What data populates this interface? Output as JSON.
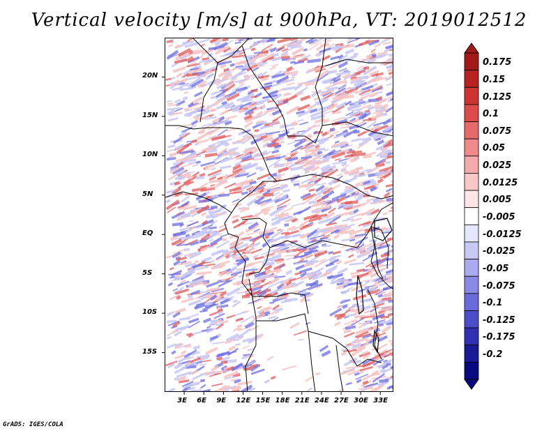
{
  "title": "Vertical velocity [m/s] at 900hPa, VT: 2019012512",
  "credit": "GrADS: IGES/COLA",
  "map": {
    "lon_range": [
      0,
      35
    ],
    "lat_range": [
      -20,
      25
    ],
    "lon_ticks": [
      "3E",
      "6E",
      "9E",
      "12E",
      "15E",
      "18E",
      "21E",
      "24E",
      "27E",
      "30E",
      "33E"
    ],
    "lat_ticks": [
      "20N",
      "15N",
      "10N",
      "5N",
      "EQ",
      "5S",
      "10S",
      "15S"
    ],
    "field_colors": {
      "positive_strong": "#e05a5a",
      "positive_light": "#f6c3c3",
      "negative_strong": "#6e6ee0",
      "negative_light": "#c7c7f5"
    }
  },
  "colorbar": {
    "levels": [
      "0.175",
      "0.15",
      "0.125",
      "0.1",
      "0.075",
      "0.05",
      "0.025",
      "0.0125",
      "0.005",
      "-0.005",
      "-0.0125",
      "-0.025",
      "-0.05",
      "-0.075",
      "-0.1",
      "-0.125",
      "-0.175",
      "-0.2"
    ],
    "colors": [
      "#a01a1a",
      "#b82222",
      "#cc3333",
      "#dd4c4c",
      "#e66a6a",
      "#ee8a8a",
      "#f4aaaa",
      "#f8c8c8",
      "#fce6e6",
      "#ffffff",
      "#e6e6fc",
      "#c8c8f5",
      "#aaaaf0",
      "#8a8ae6",
      "#6a6ad8",
      "#4c4cc8",
      "#3030b0",
      "#1a1a96",
      "#0a0a80"
    ],
    "top_color": "#a01a1a",
    "bottom_color": "#0a0a80"
  }
}
